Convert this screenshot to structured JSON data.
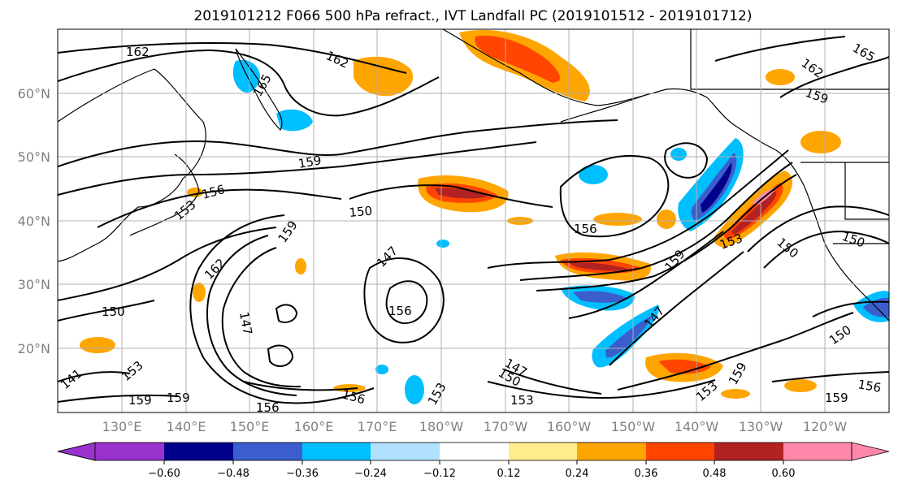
{
  "title": "2019101212 F066 500 hPa refract., IVT Landfall PC (2019101512 - 2019101712)",
  "map": {
    "lat_labels": [
      "60°N",
      "50°N",
      "40°N",
      "30°N",
      "20°N"
    ],
    "lon_labels": [
      "130°E",
      "140°E",
      "150°E",
      "160°E",
      "170°E",
      "180°W",
      "170°W",
      "160°W",
      "150°W",
      "140°W",
      "130°W",
      "120°W"
    ],
    "contour_labels": [
      "162",
      "162",
      "165",
      "165",
      "162",
      "159",
      "159",
      "156",
      "153",
      "150",
      "159",
      "147",
      "162",
      "156",
      "147",
      "156",
      "153",
      "159",
      "150",
      "153",
      "150",
      "150",
      "147",
      "150",
      "147",
      "150",
      "153",
      "156",
      "153",
      "159",
      "156",
      "159",
      "153",
      "159",
      "156",
      "141"
    ],
    "colors": {
      "land_outline": "#000000",
      "grid": "#b0b0b0"
    }
  },
  "colorbar": {
    "ticks": [
      "−0.60",
      "−0.48",
      "−0.36",
      "−0.24",
      "−0.12",
      "0.12",
      "0.24",
      "0.36",
      "0.48",
      "0.60"
    ],
    "colors": [
      "#9932cc",
      "#00008b",
      "#3a5fcd",
      "#00bfff",
      "#b0e2ff",
      "#ffffff",
      "#ffec8b",
      "#ffa500",
      "#ff4500",
      "#b22222",
      "#ff88aa"
    ]
  }
}
